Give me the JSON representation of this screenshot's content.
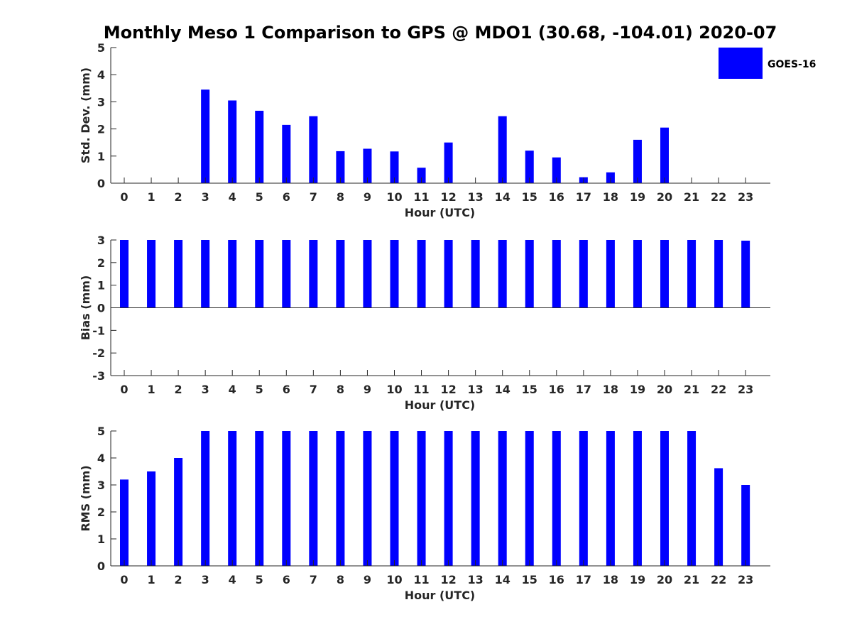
{
  "chart_data": [
    {
      "type": "bar",
      "title": "Monthly Meso 1 Comparison to GPS @ MDO1 (30.68, -104.01) 2020-07",
      "xlabel": "Hour (UTC)",
      "ylabel": "Std. Dev. (mm)",
      "ylim": [
        0,
        5
      ],
      "yticks": [
        "0",
        "1",
        "2",
        "3",
        "4",
        "5"
      ],
      "categories": [
        "0",
        "1",
        "2",
        "3",
        "4",
        "5",
        "6",
        "7",
        "8",
        "9",
        "10",
        "11",
        "12",
        "13",
        "14",
        "15",
        "16",
        "17",
        "18",
        "19",
        "20",
        "21",
        "22",
        "23"
      ],
      "series": [
        {
          "name": "GOES-16",
          "color": "#0000ff",
          "values": [
            0,
            0,
            0,
            3.45,
            3.05,
            2.67,
            2.15,
            2.47,
            1.18,
            1.27,
            1.17,
            0.57,
            1.5,
            0,
            2.47,
            1.2,
            0.95,
            0.22,
            0.4,
            1.6,
            2.05,
            0,
            0,
            0
          ]
        }
      ],
      "legend": {
        "entries": [
          "GOES-16"
        ],
        "position": "top-right"
      }
    },
    {
      "type": "bar",
      "xlabel": "Hour (UTC)",
      "ylabel": "Bias (mm)",
      "ylim": [
        -3,
        3
      ],
      "yticks": [
        "-3",
        "-2",
        "-1",
        "0",
        "1",
        "2",
        "3"
      ],
      "categories": [
        "0",
        "1",
        "2",
        "3",
        "4",
        "5",
        "6",
        "7",
        "8",
        "9",
        "10",
        "11",
        "12",
        "13",
        "14",
        "15",
        "16",
        "17",
        "18",
        "19",
        "20",
        "21",
        "22",
        "23"
      ],
      "series": [
        {
          "name": "GOES-16",
          "color": "#0000ff",
          "values": [
            3,
            3,
            3,
            3,
            3,
            3,
            3,
            3,
            3,
            3,
            3,
            3,
            3,
            3,
            3,
            3,
            3,
            3,
            3,
            3,
            3,
            3,
            3,
            2.97
          ]
        }
      ]
    },
    {
      "type": "bar",
      "xlabel": "Hour (UTC)",
      "ylabel": "RMS (mm)",
      "ylim": [
        0,
        5
      ],
      "yticks": [
        "0",
        "1",
        "2",
        "3",
        "4",
        "5"
      ],
      "categories": [
        "0",
        "1",
        "2",
        "3",
        "4",
        "5",
        "6",
        "7",
        "8",
        "9",
        "10",
        "11",
        "12",
        "13",
        "14",
        "15",
        "16",
        "17",
        "18",
        "19",
        "20",
        "21",
        "22",
        "23"
      ],
      "series": [
        {
          "name": "GOES-16",
          "color": "#0000ff",
          "values": [
            3.2,
            3.5,
            4.0,
            5,
            5,
            5,
            5,
            5,
            5,
            5,
            5,
            5,
            5,
            5,
            5,
            5,
            5,
            5,
            5,
            5,
            5,
            5,
            3.62,
            3.0
          ]
        }
      ]
    }
  ]
}
